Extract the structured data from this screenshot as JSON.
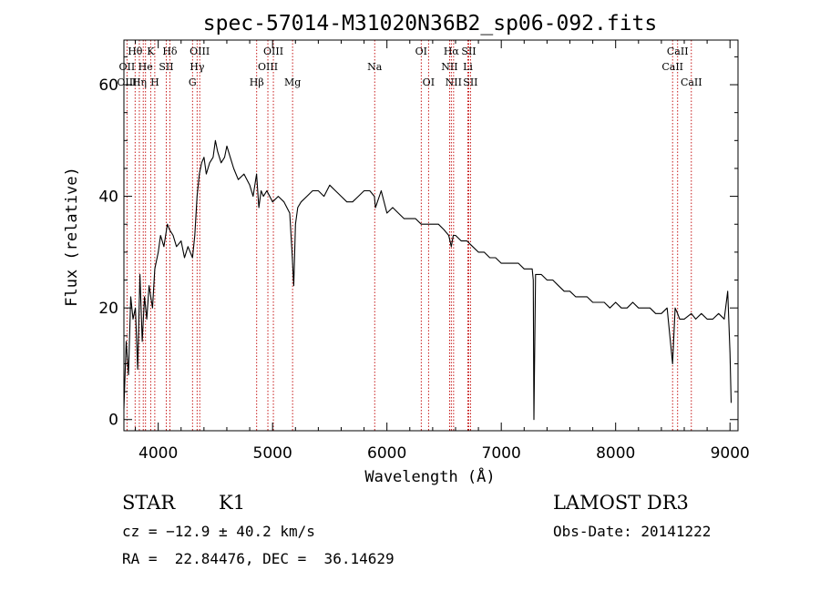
{
  "chart_data": {
    "type": "line",
    "title": "spec-57014-M31020N36B2_sp06-092.fits",
    "xlabel": "Wavelength (Å)",
    "ylabel": "Flux (relative)",
    "xlim": [
      3700,
      9070
    ],
    "ylim": [
      -2,
      68
    ],
    "xticks": [
      4000,
      5000,
      6000,
      7000,
      8000,
      9000
    ],
    "yticks": [
      0,
      20,
      40,
      60
    ],
    "grid": false,
    "line_color": "#000000",
    "marker_color": "#c00000",
    "x": [
      3700,
      3720,
      3740,
      3760,
      3780,
      3800,
      3820,
      3840,
      3860,
      3880,
      3900,
      3920,
      3950,
      3970,
      4000,
      4020,
      4050,
      4080,
      4100,
      4130,
      4160,
      4200,
      4230,
      4260,
      4280,
      4300,
      4320,
      4340,
      4360,
      4380,
      4400,
      4420,
      4450,
      4480,
      4500,
      4520,
      4550,
      4580,
      4600,
      4630,
      4660,
      4700,
      4750,
      4800,
      4830,
      4860,
      4880,
      4900,
      4920,
      4950,
      5000,
      5050,
      5100,
      5150,
      5170,
      5185,
      5200,
      5220,
      5250,
      5300,
      5350,
      5400,
      5450,
      5500,
      5550,
      5600,
      5650,
      5700,
      5750,
      5800,
      5850,
      5890,
      5900,
      5950,
      6000,
      6050,
      6100,
      6150,
      6200,
      6250,
      6300,
      6350,
      6400,
      6450,
      6500,
      6540,
      6563,
      6580,
      6600,
      6650,
      6700,
      6750,
      6800,
      6850,
      6900,
      6950,
      7000,
      7050,
      7100,
      7150,
      7200,
      7250,
      7270,
      7280,
      7285,
      7300,
      7350,
      7400,
      7450,
      7500,
      7550,
      7600,
      7650,
      7700,
      7750,
      7800,
      7850,
      7900,
      7950,
      8000,
      8050,
      8100,
      8150,
      8200,
      8250,
      8300,
      8350,
      8400,
      8450,
      8498,
      8520,
      8542,
      8560,
      8600,
      8662,
      8700,
      8750,
      8800,
      8850,
      8900,
      8950,
      8980,
      9000,
      9010
    ],
    "y": [
      2,
      14,
      8,
      22,
      18,
      20,
      9,
      26,
      14,
      22,
      18,
      24,
      20,
      27,
      30,
      33,
      31,
      35,
      34,
      33,
      31,
      32,
      29,
      31,
      30,
      29,
      33,
      40,
      44,
      46,
      47,
      44,
      46,
      47,
      50,
      48,
      46,
      47,
      49,
      47,
      45,
      43,
      44,
      42,
      40,
      44,
      38,
      41,
      40,
      41,
      39,
      40,
      39,
      37,
      30,
      24,
      35,
      38,
      39,
      40,
      41,
      41,
      40,
      42,
      41,
      40,
      39,
      39,
      40,
      41,
      41,
      40,
      38,
      41,
      37,
      38,
      37,
      36,
      36,
      36,
      35,
      35,
      35,
      35,
      34,
      33,
      31,
      33,
      33,
      32,
      32,
      31,
      30,
      30,
      29,
      29,
      28,
      28,
      28,
      28,
      27,
      27,
      27,
      25,
      0,
      26,
      26,
      25,
      25,
      24,
      23,
      23,
      22,
      22,
      22,
      21,
      21,
      21,
      20,
      21,
      20,
      20,
      21,
      20,
      20,
      20,
      19,
      19,
      20,
      10,
      20,
      19,
      18,
      18,
      19,
      18,
      19,
      18,
      18,
      19,
      18,
      23,
      12,
      3
    ]
  },
  "lines": {
    "row1": [
      "Hθ",
      "K",
      "Hδ",
      "OIII",
      "OIII",
      "OI",
      "Hα",
      "SII",
      "CaII"
    ],
    "row2": [
      "OII",
      "He",
      "SII",
      "Hγ",
      "OIII",
      "Na",
      "NII",
      "Li",
      "CaII"
    ],
    "row3": [
      "OIII",
      "Hη",
      "H",
      "G",
      "Hβ",
      "Mg",
      "OI",
      "NII",
      "SII",
      "CaII"
    ]
  },
  "info": {
    "object_class": "STAR",
    "subclass": "K1",
    "survey": "LAMOST DR3",
    "cz": "cz = −12.9 ± 40.2 km/s",
    "obs_date": "Obs-Date: 20141222",
    "coords": "RA =  22.84476, DEC =  36.14629"
  }
}
